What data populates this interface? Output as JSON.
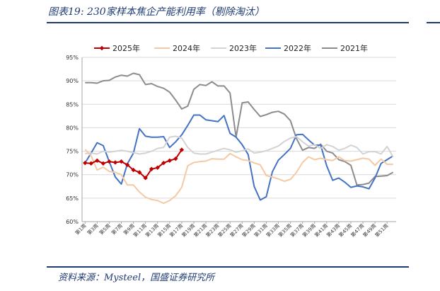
{
  "figure": {
    "title": "图表19: 230家样本焦企产能利用率（剔除淘汰）",
    "source": "资料来源：Mysteel，国盛证券研究所"
  },
  "colors": {
    "accent": "#1f3b73"
  },
  "chart_data": {
    "type": "line",
    "title": "",
    "xlabel": "",
    "ylabel": "",
    "ylim": [
      60,
      95
    ],
    "y_ticks": [
      "60%",
      "65%",
      "70%",
      "75%",
      "80%",
      "85%",
      "90%",
      "95%"
    ],
    "x_tick_labels": [
      "第1周",
      "第3周",
      "第5周",
      "第7周",
      "第9周",
      "第11周",
      "第13周",
      "第15周",
      "第17周",
      "第19周",
      "第21周",
      "第23周",
      "第25周",
      "第27周",
      "第29周",
      "第31周",
      "第33周",
      "第35周",
      "第37周",
      "第39周",
      "第41周",
      "第43周",
      "第45周",
      "第47周",
      "第49周",
      "第51周"
    ],
    "legend_position": "top",
    "grid": true,
    "series": [
      {
        "name": "2025年",
        "color": "#c00000",
        "marker": "diamond",
        "values": [
          72.5,
          72.4,
          73.0,
          72.4,
          72.8,
          72.6,
          72.8,
          72.1,
          71.0,
          70.5,
          69.3,
          71.2,
          71.5,
          72.5,
          73.0,
          73.4,
          75.3
        ]
      },
      {
        "name": "2024年",
        "color": "#f4c9a3",
        "values": [
          75.4,
          74.0,
          71.0,
          71.6,
          70.7,
          70.5,
          70.0,
          67.8,
          67.8,
          66.3,
          65.2,
          64.7,
          64.5,
          63.9,
          64.5,
          65.5,
          67.3,
          71.9,
          72.6,
          72.8,
          72.9,
          73.4,
          73.3,
          73.3,
          74.5,
          73.8,
          73.2,
          73.0,
          72.5,
          72.1,
          69.8,
          69.5,
          69.1,
          68.6,
          69.0,
          70.5,
          72.6,
          73.8,
          73.2,
          73.5,
          73.2,
          73.0,
          73.8,
          73.0,
          72.9,
          73.2,
          73.5,
          73.3,
          72.0,
          73.3,
          72.2,
          72.2
        ]
      },
      {
        "name": "2023年",
        "color": "#d3d3d3",
        "values": [
          74.5,
          74.6,
          74.4,
          75.0,
          74.8,
          75.0,
          75.2,
          75.0,
          74.7,
          74.4,
          74.6,
          75.0,
          75.6,
          75.8,
          78.0,
          78.2,
          77.8,
          75.8,
          74.6,
          74.4,
          74.4,
          74.8,
          75.2,
          75.6,
          75.3,
          74.8,
          75.1,
          75.5,
          74.6,
          74.8,
          75.1,
          75.6,
          76.1,
          77.1,
          77.8,
          78.1,
          77.0,
          76.1,
          76.4,
          75.6,
          76.4,
          76.0,
          75.2,
          75.6,
          76.3,
          75.8,
          74.4,
          74.9,
          74.9,
          74.4,
          76.0,
          73.8
        ]
      },
      {
        "name": "2022年",
        "color": "#4472c4",
        "values": [
          72.5,
          74.6,
          76.8,
          76.2,
          72.8,
          69.5,
          68.0,
          72.3,
          74.6,
          79.8,
          78.2,
          78.0,
          78.0,
          78.1,
          75.8,
          77.0,
          78.5,
          80.5,
          82.7,
          82.7,
          81.7,
          81.5,
          81.3,
          82.6,
          78.8,
          78.0,
          76.4,
          74.3,
          67.5,
          64.6,
          65.3,
          70.6,
          73.1,
          74.3,
          75.6,
          78.5,
          78.6,
          77.4,
          76.3,
          76.3,
          71.9,
          68.8,
          69.3,
          68.4,
          67.3,
          67.6,
          67.4,
          67.0,
          69.3,
          72.4,
          73.2,
          74.0
        ]
      },
      {
        "name": "2021年",
        "color": "#8c8c8c",
        "values": [
          89.6,
          89.6,
          89.5,
          90.0,
          90.1,
          90.8,
          91.2,
          91.0,
          91.6,
          91.3,
          89.2,
          89.4,
          88.8,
          88.4,
          87.6,
          85.9,
          84.0,
          84.6,
          88.2,
          89.2,
          89.0,
          89.8,
          88.9,
          88.9,
          87.4,
          78.0,
          85.3,
          85.5,
          83.9,
          82.4,
          82.8,
          83.3,
          83.5,
          82.9,
          81.5,
          77.7,
          75.2,
          75.8,
          75.6,
          76.5,
          75.0,
          74.6,
          73.2,
          72.8,
          72.0,
          67.8,
          67.9,
          68.2,
          69.6,
          69.7,
          69.8,
          70.5
        ]
      }
    ]
  }
}
